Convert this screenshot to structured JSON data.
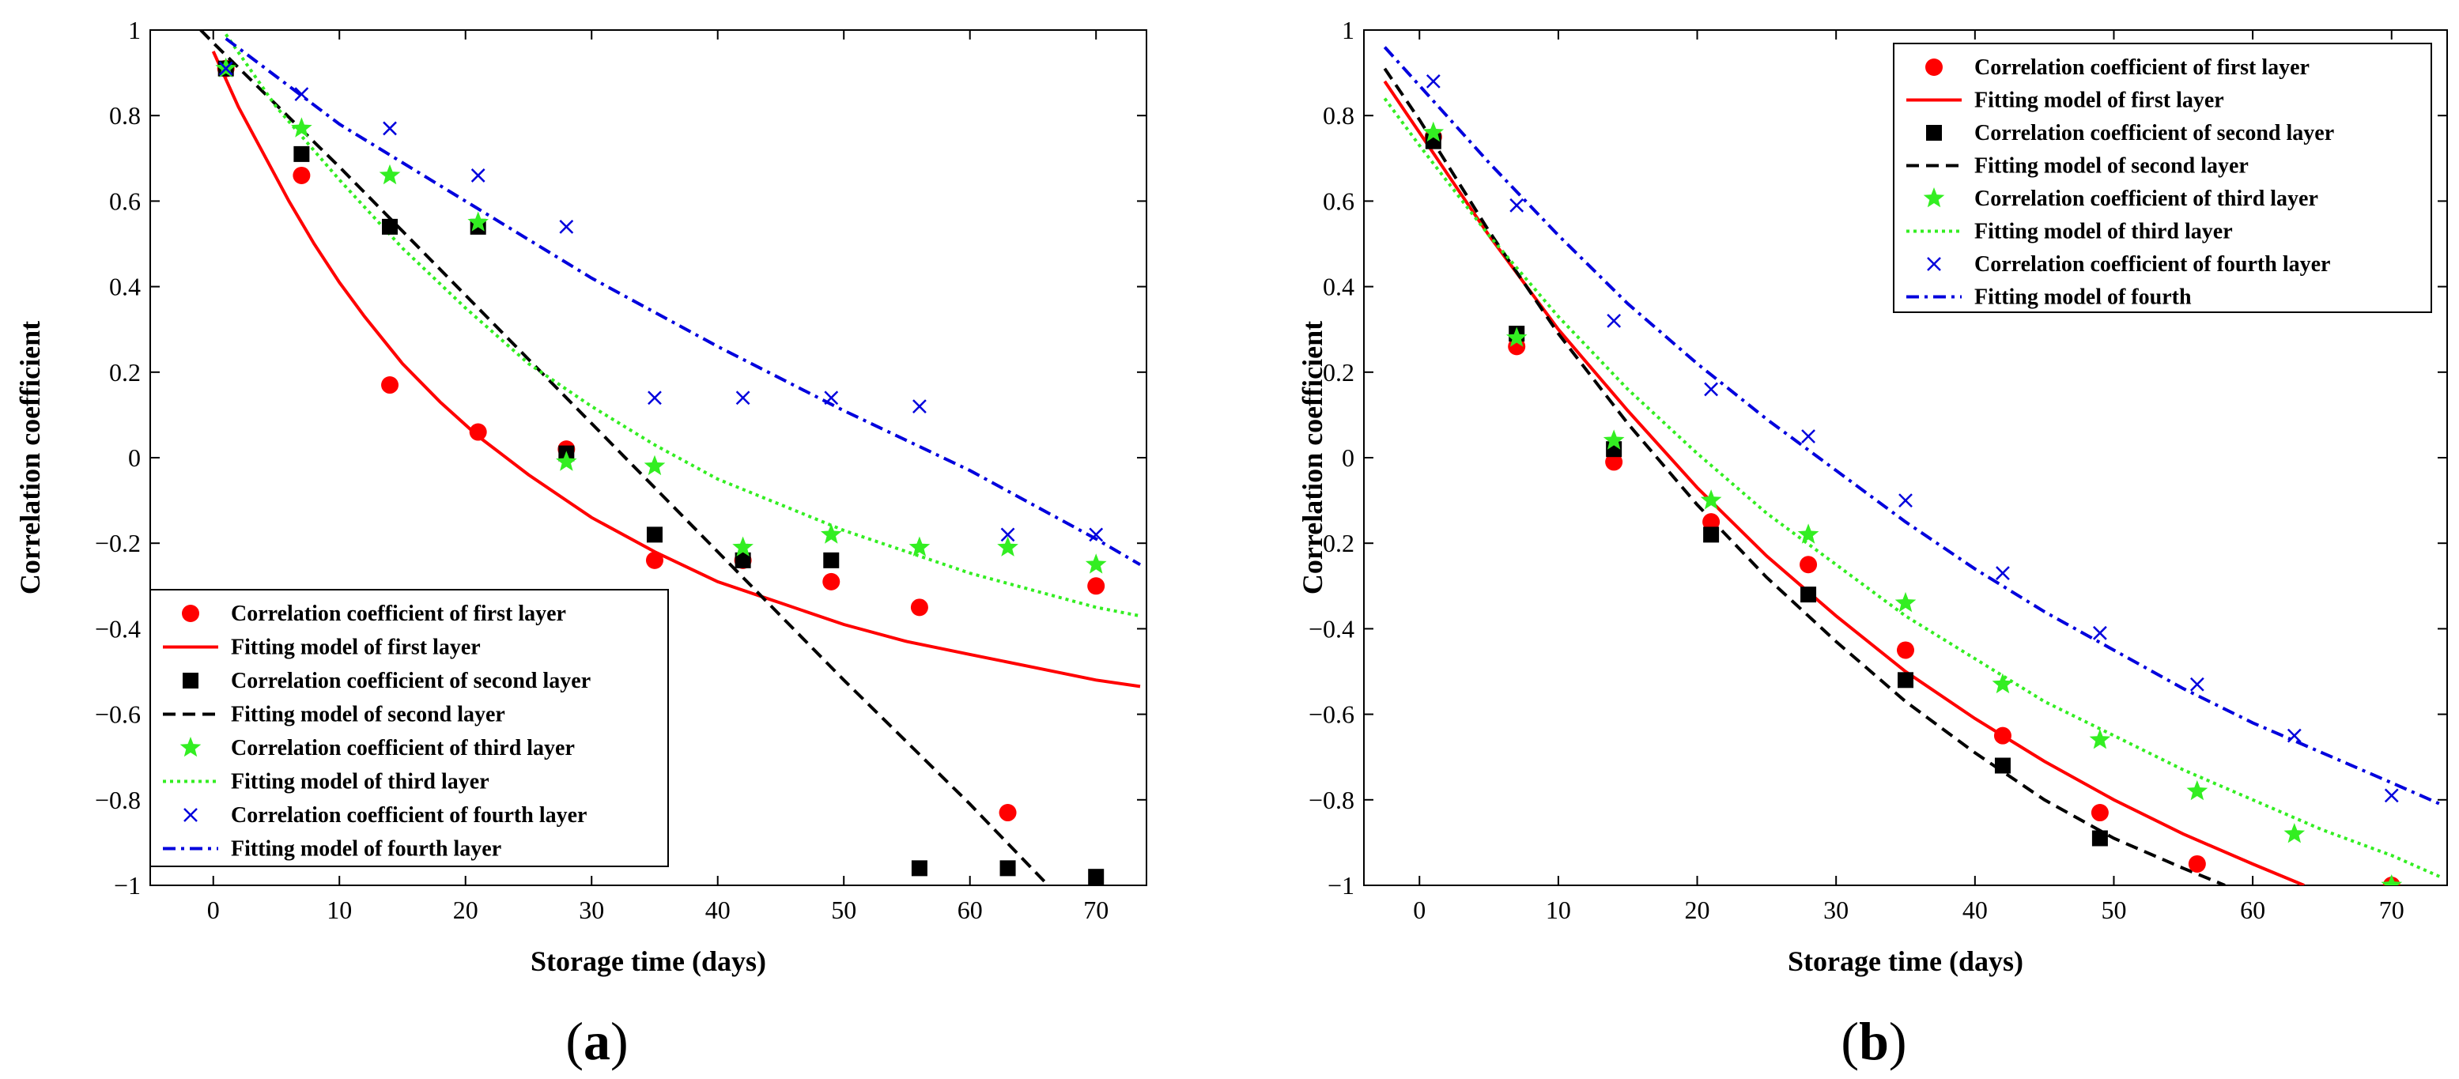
{
  "chart_data": [
    {
      "type": "scatter",
      "panel_label": "a",
      "xlabel": "Storage time (days)",
      "ylabel": "Correlation coefficient",
      "xlim": [
        -5,
        74
      ],
      "ylim": [
        -1,
        1
      ],
      "xticks": [
        0,
        10,
        20,
        30,
        40,
        50,
        60,
        70
      ],
      "yticks": [
        -1,
        -0.8,
        -0.6,
        -0.4,
        -0.2,
        0,
        0.2,
        0.4,
        0.6,
        0.8,
        1
      ],
      "ytick_labels": [
        "−1",
        "−0.8",
        "−0.6",
        "−0.4",
        "−0.2",
        "0",
        "0.2",
        "0.4",
        "0.6",
        "0.8",
        "1"
      ],
      "legend_position": "bottom-left",
      "series": [
        {
          "name": "Correlation coefficient of first layer",
          "kind": "points",
          "marker": "circle",
          "color": "#ff0000",
          "x": [
            1,
            7,
            14,
            21,
            28,
            35,
            42,
            49,
            56,
            63,
            70
          ],
          "y": [
            0.91,
            0.66,
            0.17,
            0.06,
            0.02,
            -0.24,
            -0.24,
            -0.29,
            -0.35,
            -0.83,
            -0.3
          ]
        },
        {
          "name": "Fitting model of first layer",
          "kind": "line",
          "dash": "solid",
          "color": "#ff0000",
          "x": [
            0,
            2,
            4,
            6,
            8,
            10,
            12,
            15,
            18,
            21,
            25,
            30,
            35,
            40,
            45,
            50,
            55,
            60,
            65,
            70,
            73.5
          ],
          "y": [
            0.95,
            0.82,
            0.71,
            0.6,
            0.5,
            0.41,
            0.33,
            0.22,
            0.13,
            0.05,
            -0.04,
            -0.14,
            -0.22,
            -0.29,
            -0.34,
            -0.39,
            -0.43,
            -0.46,
            -0.49,
            -0.52,
            -0.535
          ]
        },
        {
          "name": "Correlation coefficient of second layer",
          "kind": "points",
          "marker": "square",
          "color": "#000000",
          "x": [
            1,
            7,
            14,
            21,
            28,
            35,
            42,
            49,
            56,
            63,
            70
          ],
          "y": [
            0.91,
            0.71,
            0.54,
            0.54,
            0.01,
            -0.18,
            -0.24,
            -0.24,
            -0.96,
            -0.96,
            -0.98
          ]
        },
        {
          "name": "Fitting model of second layer",
          "kind": "line",
          "dash": "dashed",
          "color": "#000000",
          "x": [
            -1,
            0,
            10,
            20,
            30,
            40,
            50,
            60,
            66.2
          ],
          "y": [
            1.0,
            0.97,
            0.68,
            0.38,
            0.08,
            -0.22,
            -0.52,
            -0.81,
            -1.0
          ]
        },
        {
          "name": "Correlation coefficient of third layer",
          "kind": "points",
          "marker": "star",
          "color": "#33ee22",
          "x": [
            1,
            7,
            14,
            21,
            28,
            35,
            42,
            49,
            56,
            63,
            70
          ],
          "y": [
            0.91,
            0.77,
            0.66,
            0.55,
            -0.01,
            -0.02,
            -0.21,
            -0.18,
            -0.21,
            -0.21,
            -0.25
          ]
        },
        {
          "name": "Fitting model of third layer",
          "kind": "line",
          "dash": "dotted",
          "color": "#33ee22",
          "x": [
            1,
            5,
            10,
            15,
            20,
            25,
            30,
            35,
            40,
            45,
            50,
            55,
            60,
            65,
            70,
            73.5
          ],
          "y": [
            0.99,
            0.82,
            0.65,
            0.49,
            0.35,
            0.22,
            0.12,
            0.03,
            -0.05,
            -0.11,
            -0.17,
            -0.22,
            -0.27,
            -0.31,
            -0.35,
            -0.37
          ]
        },
        {
          "name": "Correlation coefficient of fourth layer",
          "kind": "points",
          "marker": "x",
          "color": "#0000dd",
          "x": [
            1,
            7,
            14,
            21,
            28,
            35,
            42,
            49,
            56,
            63,
            70
          ],
          "y": [
            0.91,
            0.85,
            0.77,
            0.66,
            0.54,
            0.14,
            0.14,
            0.14,
            0.12,
            -0.18,
            -0.18
          ]
        },
        {
          "name": "Fitting model of fourth layer",
          "kind": "line",
          "dash": "dashdot",
          "color": "#0000dd",
          "x": [
            1,
            10,
            20,
            30,
            40,
            50,
            60,
            70,
            73.5
          ],
          "y": [
            0.98,
            0.78,
            0.6,
            0.42,
            0.26,
            0.11,
            -0.03,
            -0.19,
            -0.25
          ]
        }
      ]
    },
    {
      "type": "scatter",
      "panel_label": "b",
      "xlabel": "Storage time (days)",
      "ylabel": "Correlation coefficient",
      "xlim": [
        -4,
        74
      ],
      "ylim": [
        -1,
        1
      ],
      "xticks": [
        0,
        10,
        20,
        30,
        40,
        50,
        60,
        70
      ],
      "yticks": [
        -1,
        -0.8,
        -0.6,
        -0.4,
        -0.2,
        0,
        0.2,
        0.4,
        0.6,
        0.8,
        1
      ],
      "ytick_labels": [
        "−1",
        "−0.8",
        "−0.6",
        "−0.4",
        "−0.2",
        "0",
        "0.2",
        "0.4",
        "0.6",
        "0.8",
        "1"
      ],
      "legend_position": "top-right",
      "series": [
        {
          "name": "Correlation coefficient of first layer",
          "kind": "points",
          "marker": "circle",
          "color": "#ff0000",
          "x": [
            1,
            7,
            14,
            21,
            28,
            35,
            42,
            49,
            56,
            70
          ],
          "y": [
            0.75,
            0.26,
            -0.01,
            -0.15,
            -0.25,
            -0.45,
            -0.65,
            -0.83,
            -0.95,
            -1.0
          ]
        },
        {
          "name": "Fitting model of first layer",
          "kind": "line",
          "dash": "solid",
          "color": "#ff0000",
          "x": [
            -2.5,
            0,
            5,
            10,
            15,
            20,
            25,
            30,
            35,
            40,
            45,
            50,
            55,
            60,
            63.7
          ],
          "y": [
            0.88,
            0.76,
            0.52,
            0.3,
            0.11,
            -0.07,
            -0.23,
            -0.37,
            -0.5,
            -0.61,
            -0.71,
            -0.8,
            -0.88,
            -0.95,
            -1.0
          ]
        },
        {
          "name": "Correlation coefficient of second layer",
          "kind": "points",
          "marker": "square",
          "color": "#000000",
          "x": [
            1,
            7,
            14,
            21,
            28,
            35,
            42,
            49
          ],
          "y": [
            0.74,
            0.29,
            0.02,
            -0.18,
            -0.32,
            -0.52,
            -0.72,
            -0.89
          ]
        },
        {
          "name": "Fitting model of second layer",
          "kind": "line",
          "dash": "dashed",
          "color": "#000000",
          "x": [
            -2.5,
            0,
            5,
            10,
            15,
            20,
            25,
            30,
            35,
            40,
            45,
            50,
            55,
            58
          ],
          "y": [
            0.91,
            0.79,
            0.53,
            0.29,
            0.08,
            -0.11,
            -0.28,
            -0.43,
            -0.57,
            -0.69,
            -0.8,
            -0.89,
            -0.96,
            -1.0
          ]
        },
        {
          "name": "Correlation coefficient of third layer",
          "kind": "points",
          "marker": "star",
          "color": "#33ee22",
          "x": [
            1,
            7,
            14,
            21,
            28,
            35,
            42,
            49,
            56,
            63,
            70
          ],
          "y": [
            0.76,
            0.28,
            0.04,
            -0.1,
            -0.18,
            -0.34,
            -0.53,
            -0.66,
            -0.78,
            -0.88,
            -1.0
          ]
        },
        {
          "name": "Fitting model of third layer",
          "kind": "line",
          "dash": "dotted",
          "color": "#33ee22",
          "x": [
            -2.5,
            0,
            5,
            10,
            15,
            20,
            25,
            30,
            35,
            40,
            45,
            50,
            55,
            60,
            65,
            70,
            73.5
          ],
          "y": [
            0.84,
            0.73,
            0.52,
            0.33,
            0.16,
            0.01,
            -0.13,
            -0.25,
            -0.37,
            -0.47,
            -0.57,
            -0.65,
            -0.73,
            -0.8,
            -0.87,
            -0.93,
            -0.98
          ]
        },
        {
          "name": "Correlation coefficient of fourth layer",
          "kind": "points",
          "marker": "x",
          "color": "#0000dd",
          "x": [
            1,
            7,
            14,
            21,
            28,
            35,
            42,
            49,
            56,
            63,
            70
          ],
          "y": [
            0.88,
            0.59,
            0.32,
            0.16,
            0.05,
            -0.1,
            -0.27,
            -0.41,
            -0.53,
            -0.65,
            -0.79
          ]
        },
        {
          "name": "Fitting model of fourth",
          "kind": "line",
          "dash": "dashdot",
          "color": "#0000dd",
          "x": [
            -2.5,
            0,
            5,
            10,
            15,
            20,
            25,
            30,
            35,
            40,
            45,
            50,
            55,
            60,
            65,
            70,
            73.5
          ],
          "y": [
            0.96,
            0.87,
            0.69,
            0.52,
            0.36,
            0.22,
            0.09,
            -0.03,
            -0.15,
            -0.26,
            -0.36,
            -0.45,
            -0.54,
            -0.62,
            -0.69,
            -0.76,
            -0.81
          ]
        }
      ]
    }
  ]
}
